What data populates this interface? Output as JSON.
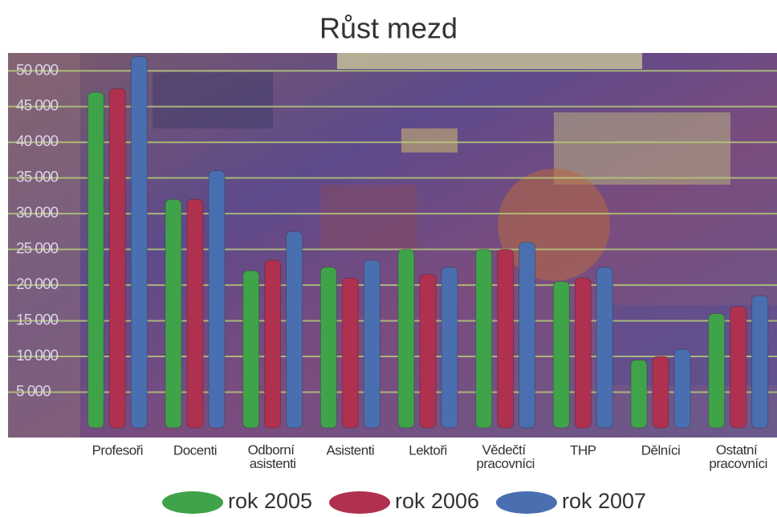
{
  "chart_data": {
    "type": "bar",
    "title": "Růst mezd",
    "categories": [
      "Profesoři",
      "Docenti",
      "Odborní asistenti",
      "Asistenti",
      "Lektoři",
      "Vědečtí pracovníci",
      "THP",
      "Dělníci",
      "Ostatní pracovníci"
    ],
    "series": [
      {
        "name": "rok 2005",
        "color": "#3fa34a",
        "values": [
          47000,
          32000,
          22000,
          22500,
          25000,
          25000,
          20500,
          9500,
          16000
        ]
      },
      {
        "name": "rok 2006",
        "color": "#b0304f",
        "values": [
          47500,
          32000,
          23500,
          21000,
          21500,
          25000,
          21000,
          10000,
          17000
        ]
      },
      {
        "name": "rok 2007",
        "color": "#4a6fb0",
        "values": [
          52000,
          36000,
          27500,
          23500,
          22500,
          26000,
          22500,
          11000,
          18500
        ]
      }
    ],
    "ylim": [
      0,
      52500
    ],
    "yticks": [
      {
        "value": 5000,
        "label": "5 000"
      },
      {
        "value": 10000,
        "label": "10 000"
      },
      {
        "value": 15000,
        "label": "15 000"
      },
      {
        "value": 20000,
        "label": "20 000"
      },
      {
        "value": 25000,
        "label": "25 000"
      },
      {
        "value": 30000,
        "label": "30 000"
      },
      {
        "value": 35000,
        "label": "35 000"
      },
      {
        "value": 40000,
        "label": "40 000"
      },
      {
        "value": 45000,
        "label": "45 000"
      },
      {
        "value": 50000,
        "label": "50 000"
      }
    ],
    "grid": true
  }
}
